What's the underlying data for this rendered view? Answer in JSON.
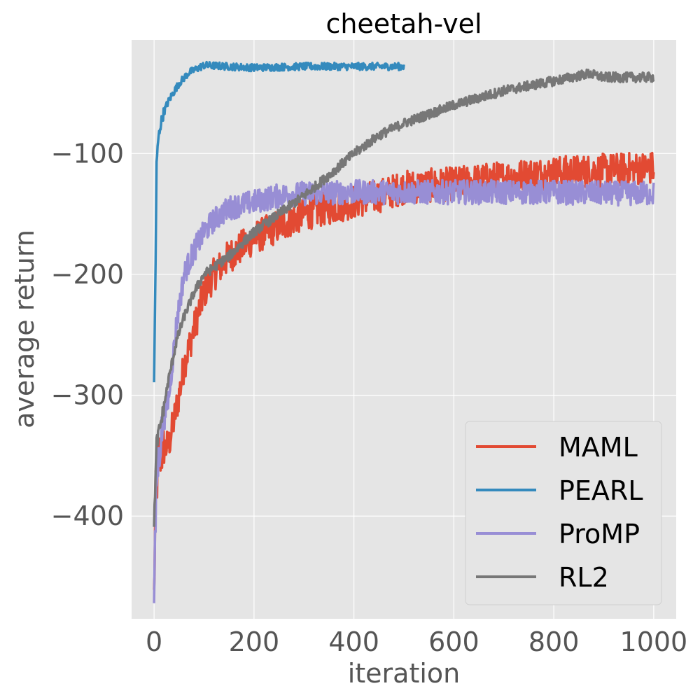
{
  "chart_data": {
    "type": "line",
    "title": "cheetah-vel",
    "xlabel": "iteration",
    "ylabel": "average return",
    "xlim": [
      -45,
      1045
    ],
    "ylim": [
      -485,
      -6
    ],
    "xticks": [
      0,
      200,
      400,
      600,
      800,
      1000
    ],
    "yticks": [
      -400,
      -300,
      -200,
      -100
    ],
    "xtick_labels": [
      "0",
      "200",
      "400",
      "600",
      "800",
      "1000"
    ],
    "ytick_labels": [
      "−400",
      "−300",
      "−200",
      "−100"
    ],
    "grid": true,
    "legend_position": "bottom-right",
    "background": "#e5e5e5",
    "series": [
      {
        "name": "MAML",
        "color": "#e24a33",
        "noise": 14,
        "x": [
          0,
          3,
          10,
          20,
          30,
          40,
          50,
          60,
          80,
          100,
          120,
          150,
          200,
          250,
          300,
          350,
          400,
          450,
          500,
          600,
          700,
          800,
          900,
          1000
        ],
        "y": [
          -468,
          -385,
          -350,
          -345,
          -340,
          -320,
          -300,
          -275,
          -245,
          -215,
          -200,
          -185,
          -170,
          -160,
          -150,
          -145,
          -140,
          -135,
          -128,
          -125,
          -120,
          -116,
          -114,
          -112
        ]
      },
      {
        "name": "PEARL",
        "color": "#348abd",
        "noise": 3,
        "x": [
          0,
          2,
          5,
          8,
          12,
          18,
          25,
          35,
          50,
          70,
          100,
          150,
          200,
          300,
          400,
          500
        ],
        "y": [
          -292,
          -225,
          -110,
          -90,
          -78,
          -68,
          -60,
          -52,
          -42,
          -33,
          -27,
          -28,
          -29,
          -28,
          -28,
          -28
        ]
      },
      {
        "name": "ProMP",
        "color": "#988ed5",
        "noise": 10,
        "x": [
          0,
          5,
          15,
          30,
          45,
          60,
          80,
          100,
          120,
          150,
          200,
          250,
          300,
          400,
          500,
          600,
          700,
          800,
          900,
          1000
        ],
        "y": [
          -465,
          -370,
          -330,
          -300,
          -240,
          -200,
          -180,
          -165,
          -155,
          -145,
          -140,
          -135,
          -133,
          -132,
          -132,
          -132,
          -132,
          -132,
          -133,
          -133
        ]
      },
      {
        "name": "RL2",
        "color": "#777777",
        "noise": 4,
        "x": [
          0,
          5,
          15,
          30,
          45,
          60,
          80,
          100,
          150,
          200,
          250,
          300,
          350,
          400,
          450,
          500,
          600,
          700,
          800,
          870,
          900,
          1000
        ],
        "y": [
          -405,
          -340,
          -320,
          -285,
          -255,
          -235,
          -215,
          -200,
          -185,
          -165,
          -150,
          -135,
          -118,
          -100,
          -85,
          -75,
          -60,
          -48,
          -40,
          -34,
          -37,
          -37
        ]
      }
    ]
  }
}
